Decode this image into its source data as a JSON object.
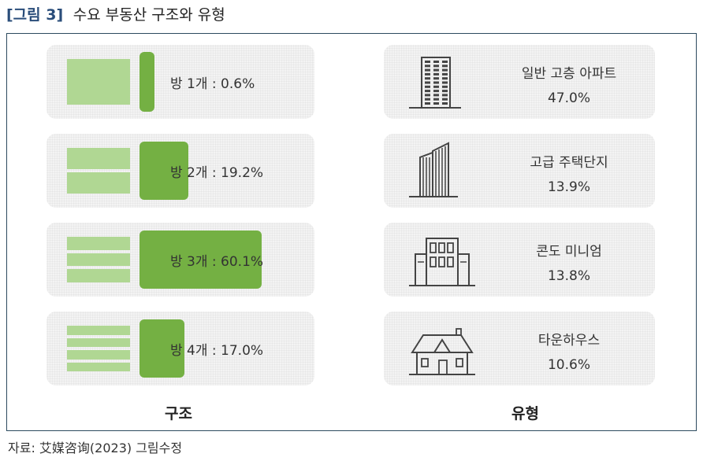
{
  "header": {
    "tag": "[그림 3]",
    "title": "수요 부동산 구조와 유형"
  },
  "chart_data": [
    {
      "type": "bar",
      "caption": "구조",
      "categories": [
        "방 1개",
        "방 2개",
        "방 3개",
        "방 4개"
      ],
      "values": [
        0.6,
        19.2,
        60.1,
        17.0
      ],
      "labels": [
        "방 1개 : 0.6%",
        "방 2개 : 19.2%",
        "방 3개 : 60.1%",
        "방 4개 : 17.0%"
      ],
      "bar_color": "#74b043",
      "icon_color": "#b0d793"
    },
    {
      "type": "table",
      "caption": "유형",
      "items": [
        {
          "name": "일반 고층 아파트",
          "value": 47.0,
          "pct": "47.0%",
          "icon": "high-rise-apartment-icon"
        },
        {
          "name": "고급 주택단지",
          "value": 13.9,
          "pct": "13.9%",
          "icon": "luxury-tower-icon"
        },
        {
          "name": "콘도 미니엄",
          "value": 13.8,
          "pct": "13.8%",
          "icon": "condominium-icon"
        },
        {
          "name": "타운하우스",
          "value": 10.6,
          "pct": "10.6%",
          "icon": "townhouse-icon"
        }
      ]
    }
  ],
  "source": "자료:  艾媒咨询(2023) 그림수정"
}
